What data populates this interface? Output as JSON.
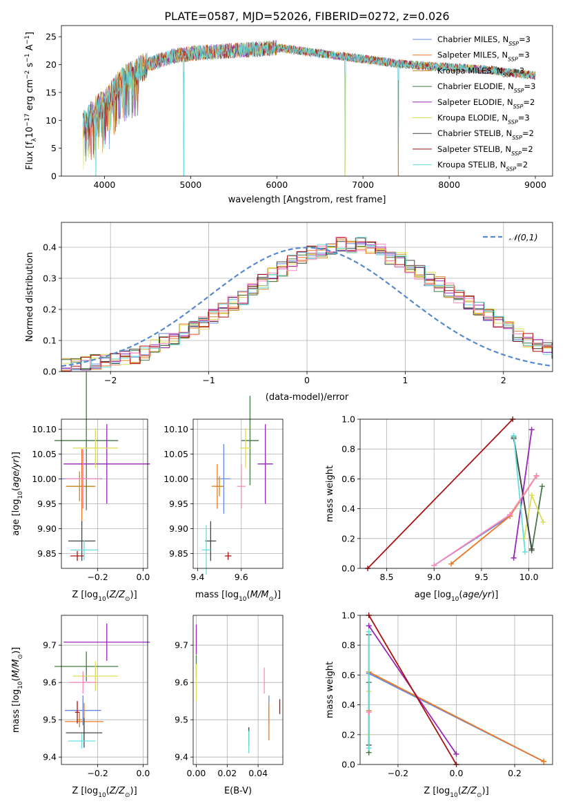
{
  "figure": {
    "title": "PLATE=0587, MJD=52026, FIBERID=0272, z=0.026"
  },
  "colors": [
    "#6688dd",
    "#ee7722",
    "#cc8822",
    "#447744",
    "#9922bb",
    "#dddd55",
    "#444444",
    "#aa1111",
    "#66dddd",
    "#ff88bb"
  ],
  "chart_data": [
    {
      "id": "spectrum",
      "type": "line",
      "xlabel": "wavelength [Angstrom, rest frame]",
      "ylabel": "Flux [f_λ 10^-17 erg cm^-2 s^-1 A^-1]",
      "xlim": [
        3500,
        9200
      ],
      "ylim": [
        0,
        27
      ],
      "xticks": [
        4000,
        5000,
        6000,
        7000,
        8000,
        9000
      ],
      "yticks": [
        0,
        5,
        10,
        15,
        20,
        25
      ],
      "grid": false,
      "legend_placement": "upper-right",
      "series": [
        {
          "name": "Chabrier MILES, N_SSP=3",
          "color": "#6688dd"
        },
        {
          "name": "Salpeter MILES, N_SSP=3",
          "color": "#ee7722"
        },
        {
          "name": "Kroupa MILES, N_SSP=3",
          "color": "#cc8822"
        },
        {
          "name": "Chabrier ELODIE, N_SSP=3",
          "color": "#447744"
        },
        {
          "name": "Salpeter ELODIE, N_SSP=2",
          "color": "#9922bb"
        },
        {
          "name": "Kroupa ELODIE, N_SSP=3",
          "color": "#dddd55"
        },
        {
          "name": "Chabrier STELIB, N_SSP=2",
          "color": "#444444"
        },
        {
          "name": "Salpeter STELIB, N_SSP=2",
          "color": "#aa1111"
        },
        {
          "name": "Kroupa STELIB, N_SSP=2",
          "color": "#66dddd"
        }
      ],
      "continuum": {
        "x": [
          3750,
          3900,
          4000,
          4200,
          4500,
          4800,
          5000,
          5500,
          6000,
          6500,
          7000,
          7500,
          8000,
          8500,
          9000
        ],
        "y": [
          9,
          12,
          13,
          17,
          20,
          21.5,
          22,
          22.5,
          23,
          22,
          21,
          20,
          19.5,
          19,
          18
        ]
      },
      "dips": [
        {
          "x": 3900,
          "y": 0
        },
        {
          "x": 4920,
          "y": 0
        },
        {
          "x": 6790,
          "y": 0
        },
        {
          "x": 7410,
          "y": 0
        }
      ]
    },
    {
      "id": "residual_hist",
      "type": "step",
      "xlabel": "(data-model)/error",
      "ylabel": "Normed distribution",
      "xlim": [
        -2.5,
        2.5
      ],
      "ylim": [
        0,
        0.48
      ],
      "xticks": [
        -2,
        -1,
        0,
        1,
        2
      ],
      "yticks": [
        0.0,
        0.1,
        0.2,
        0.3,
        0.4
      ],
      "grid": true,
      "legend_placement": "upper-right",
      "legend": [
        "𝒩(0,1)"
      ],
      "bin_width": 0.1,
      "bins_start": -2.5,
      "hist_reference": [
        0.018,
        0.02,
        0.025,
        0.03,
        0.035,
        0.04,
        0.045,
        0.05,
        0.06,
        0.08,
        0.1,
        0.11,
        0.13,
        0.14,
        0.16,
        0.18,
        0.2,
        0.22,
        0.24,
        0.27,
        0.29,
        0.31,
        0.33,
        0.35,
        0.37,
        0.38,
        0.39,
        0.4,
        0.41,
        0.4,
        0.41,
        0.4,
        0.39,
        0.37,
        0.36,
        0.34,
        0.32,
        0.3,
        0.28,
        0.26,
        0.24,
        0.22,
        0.2,
        0.18,
        0.16,
        0.14,
        0.12,
        0.1,
        0.085,
        0.07,
        0.06,
        0.05,
        0.045,
        0.04,
        0.035,
        0.03,
        0.028,
        0.025,
        0.022,
        0.02
      ]
    },
    {
      "id": "age_vs_Z",
      "type": "errorbar",
      "xlabel": "Z [log10(Z/Z_sun)]",
      "ylabel": "age  [log10(age/yr)]",
      "xlim": [
        -0.36,
        0.02
      ],
      "ylim": [
        9.82,
        10.12
      ],
      "xticks": [
        -0.2,
        0.0
      ],
      "yticks": [
        9.85,
        9.9,
        9.95,
        10.0,
        10.05,
        10.1
      ],
      "grid": true,
      "points": [
        {
          "x": -0.27,
          "y": 10.0,
          "xerr": 0.09,
          "yerr": 0.06,
          "color": "#6688dd"
        },
        {
          "x": -0.27,
          "y": 9.985,
          "xerr": 0.06,
          "yerr": 0.075,
          "color": "#ee7722"
        },
        {
          "x": -0.28,
          "y": 9.985,
          "xerr": 0.06,
          "yerr": 0.03,
          "color": "#cc8822"
        },
        {
          "x": -0.25,
          "y": 10.077,
          "xerr": 0.14,
          "yerr": 0.14,
          "color": "#447744"
        },
        {
          "x": -0.16,
          "y": 10.03,
          "xerr": 0.19,
          "yerr": 0.08,
          "color": "#9922bb"
        },
        {
          "x": -0.21,
          "y": 10.062,
          "xerr": 0.1,
          "yerr": 0.04,
          "color": "#dddd55"
        },
        {
          "x": -0.27,
          "y": 9.875,
          "xerr": 0.06,
          "yerr": 0.04,
          "color": "#444444"
        },
        {
          "x": -0.29,
          "y": 9.845,
          "xerr": 0.03,
          "yerr": 0.01,
          "color": "#aa1111"
        },
        {
          "x": -0.26,
          "y": 9.857,
          "xerr": 0.06,
          "yerr": 0.02,
          "color": "#66dddd"
        },
        {
          "x": -0.265,
          "y": 10.0,
          "xerr": 0.08,
          "yerr": 0.06,
          "color": "#ff88bb"
        }
      ]
    },
    {
      "id": "age_vs_mass",
      "type": "errorbar",
      "xlabel": "mass [log10(M/M_sun)]",
      "ylabel": "",
      "xlim": [
        9.38,
        9.79
      ],
      "ylim": [
        9.82,
        10.12
      ],
      "xticks": [
        9.4,
        9.6
      ],
      "yticks": [
        9.85,
        9.9,
        9.95,
        10.0,
        10.05,
        10.1
      ],
      "grid": true,
      "points": [
        {
          "x": 9.52,
          "y": 10.0,
          "xerr": 0.03,
          "yerr": 0.07,
          "color": "#6688dd"
        },
        {
          "x": 9.49,
          "y": 9.985,
          "xerr": 0.025,
          "yerr": 0.045,
          "color": "#ee7722"
        },
        {
          "x": 9.5,
          "y": 9.985,
          "xerr": 0.02,
          "yerr": 0.02,
          "color": "#cc8822"
        },
        {
          "x": 9.64,
          "y": 10.077,
          "xerr": 0.04,
          "yerr": 0.09,
          "color": "#447744"
        },
        {
          "x": 9.71,
          "y": 10.03,
          "xerr": 0.035,
          "yerr": 0.08,
          "color": "#9922bb"
        },
        {
          "x": 9.62,
          "y": 10.062,
          "xerr": 0.025,
          "yerr": 0.04,
          "color": "#dddd55"
        },
        {
          "x": 9.46,
          "y": 9.875,
          "xerr": 0.025,
          "yerr": 0.04,
          "color": "#444444"
        },
        {
          "x": 9.54,
          "y": 9.845,
          "xerr": 0.015,
          "yerr": 0.008,
          "color": "#aa1111"
        },
        {
          "x": 9.44,
          "y": 9.857,
          "xerr": 0.02,
          "yerr": 0.05,
          "color": "#66dddd"
        },
        {
          "x": 9.6,
          "y": 9.985,
          "xerr": 0.02,
          "yerr": 0.045,
          "color": "#ff88bb"
        }
      ]
    },
    {
      "id": "weight_vs_age",
      "type": "line",
      "xlabel": "age  [log10(age/yr)]",
      "ylabel": "mass weight",
      "xlim": [
        8.22,
        10.25
      ],
      "ylim": [
        0,
        1.0
      ],
      "xticks": [
        8.5,
        9.0,
        9.5,
        10.0
      ],
      "yticks": [
        0.0,
        0.2,
        0.4,
        0.6,
        0.8,
        1.0
      ],
      "grid": true,
      "series": [
        {
          "color": "#6688dd",
          "x": [
            9.0,
            9.8,
            10.08
          ],
          "y": [
            0.02,
            0.35,
            0.62
          ]
        },
        {
          "color": "#ee7722",
          "x": [
            9.18,
            9.8,
            10.08
          ],
          "y": [
            0.03,
            0.35,
            0.62
          ]
        },
        {
          "color": "#cc8822",
          "x": [
            9.8,
            10.08
          ],
          "y": [
            0.36,
            0.62
          ]
        },
        {
          "color": "#447744",
          "x": [
            9.84,
            10.03,
            10.14
          ],
          "y": [
            0.88,
            0.12,
            0.55
          ]
        },
        {
          "color": "#9922bb",
          "x": [
            9.84,
            10.03
          ],
          "y": [
            0.07,
            0.93
          ]
        },
        {
          "color": "#dddd55",
          "x": [
            9.95,
            10.03,
            10.15
          ],
          "y": [
            0.2,
            0.49,
            0.31
          ]
        },
        {
          "color": "#444444",
          "x": [
            9.84,
            10.03
          ],
          "y": [
            0.87,
            0.13
          ]
        },
        {
          "color": "#aa1111",
          "x": [
            8.3,
            9.83
          ],
          "y": [
            0.0,
            1.0
          ]
        },
        {
          "color": "#66dddd",
          "x": [
            9.84,
            9.96
          ],
          "y": [
            0.89,
            0.11
          ]
        },
        {
          "color": "#ff88bb",
          "x": [
            9.0,
            9.8,
            10.08
          ],
          "y": [
            0.02,
            0.36,
            0.62
          ]
        }
      ]
    },
    {
      "id": "mass_vs_Z",
      "type": "errorbar",
      "xlabel": "Z [log10(Z/Z_sun)]",
      "ylabel": "mass [log10(M/M_sun)]",
      "xlim": [
        -0.36,
        0.02
      ],
      "ylim": [
        9.38,
        9.78
      ],
      "xticks": [
        -0.2,
        0.0
      ],
      "yticks": [
        9.4,
        9.5,
        9.6,
        9.7
      ],
      "grid": true,
      "points": [
        {
          "x": -0.265,
          "y": 9.525,
          "xerr": 0.08,
          "yerr": 0.04,
          "color": "#6688dd"
        },
        {
          "x": -0.26,
          "y": 9.495,
          "xerr": 0.085,
          "yerr": 0.05,
          "color": "#ee7722"
        },
        {
          "x": -0.28,
          "y": 9.5,
          "xerr": 0.01,
          "yerr": 0.02,
          "color": "#cc8822"
        },
        {
          "x": -0.25,
          "y": 9.643,
          "xerr": 0.14,
          "yerr": 0.04,
          "color": "#447744"
        },
        {
          "x": -0.16,
          "y": 9.708,
          "xerr": 0.19,
          "yerr": 0.05,
          "color": "#9922bb"
        },
        {
          "x": -0.21,
          "y": 9.617,
          "xerr": 0.1,
          "yerr": 0.04,
          "color": "#dddd55"
        },
        {
          "x": -0.26,
          "y": 9.465,
          "xerr": 0.08,
          "yerr": 0.04,
          "color": "#444444"
        },
        {
          "x": -0.29,
          "y": 9.52,
          "xerr": 0.01,
          "yerr": 0.03,
          "color": "#aa1111"
        },
        {
          "x": -0.27,
          "y": 9.443,
          "xerr": 0.06,
          "yerr": 0.02,
          "color": "#66dddd"
        },
        {
          "x": -0.265,
          "y": 9.6,
          "xerr": 0.06,
          "yerr": 0.03,
          "color": "#ff88bb"
        }
      ]
    },
    {
      "id": "mass_vs_ebv",
      "type": "errorbar",
      "xlabel": "E(B-V)",
      "ylabel": "",
      "xlim": [
        -0.002,
        0.056
      ],
      "ylim": [
        9.38,
        9.78
      ],
      "xticks": [
        0.0,
        0.02,
        0.04
      ],
      "yticks": [
        9.4,
        9.5,
        9.6,
        9.7
      ],
      "grid": true,
      "points": [
        {
          "x": 0.047,
          "y": 9.525,
          "xerr": 0,
          "yerr": 0.04,
          "color": "#6688dd"
        },
        {
          "x": 0.047,
          "y": 9.495,
          "xerr": 0,
          "yerr": 0.05,
          "color": "#ee7722"
        },
        {
          "x": 0.054,
          "y": 9.535,
          "xerr": 0,
          "yerr": 0.02,
          "color": "#aa1111"
        },
        {
          "x": 0.0,
          "y": 9.643,
          "xerr": 0,
          "yerr": 0.03,
          "color": "#447744"
        },
        {
          "x": 0.0,
          "y": 9.715,
          "xerr": 0,
          "yerr": 0.04,
          "color": "#9922bb"
        },
        {
          "x": 0.0,
          "y": 9.6,
          "xerr": 0,
          "yerr": 0.05,
          "color": "#dddd55"
        },
        {
          "x": 0.034,
          "y": 9.455,
          "xerr": 0,
          "yerr": 0.025,
          "color": "#444444"
        },
        {
          "x": 0.034,
          "y": 9.44,
          "xerr": 0,
          "yerr": 0.03,
          "color": "#66dddd"
        },
        {
          "x": 0.044,
          "y": 9.605,
          "xerr": 0,
          "yerr": 0.035,
          "color": "#ff88bb"
        }
      ]
    },
    {
      "id": "weight_vs_Z",
      "type": "line",
      "xlabel": "Z [log10(Z/Z_sun)]",
      "ylabel": "mass weight",
      "xlim": [
        -0.33,
        0.33
      ],
      "ylim": [
        0,
        1.0
      ],
      "xticks": [
        -0.2,
        0.0,
        0.2
      ],
      "yticks": [
        0.0,
        0.2,
        0.4,
        0.6,
        0.8,
        1.0
      ],
      "grid": true,
      "series": [
        {
          "color": "#6688dd",
          "x": [
            -0.3,
            0.3
          ],
          "y": [
            0.61,
            0.02
          ]
        },
        {
          "color": "#ee7722",
          "x": [
            -0.3,
            0.3
          ],
          "y": [
            0.62,
            0.02
          ]
        },
        {
          "color": "#cc8822",
          "x": [
            -0.3
          ],
          "y": [
            0.36
          ]
        },
        {
          "color": "#447744",
          "x": [
            -0.3,
            -0.3
          ],
          "y": [
            0.55,
            0.08
          ]
        },
        {
          "color": "#9922bb",
          "x": [
            -0.3,
            0.0
          ],
          "y": [
            0.93,
            0.07
          ]
        },
        {
          "color": "#dddd55",
          "x": [
            -0.3,
            -0.3
          ],
          "y": [
            0.49,
            0.2
          ]
        },
        {
          "color": "#444444",
          "x": [
            -0.3,
            -0.3
          ],
          "y": [
            0.87,
            0.13
          ]
        },
        {
          "color": "#aa1111",
          "x": [
            -0.3,
            0.0
          ],
          "y": [
            1.0,
            0.0
          ]
        },
        {
          "color": "#66dddd",
          "x": [
            -0.3,
            -0.3
          ],
          "y": [
            0.89,
            0.11
          ]
        },
        {
          "color": "#ff88bb",
          "x": [
            -0.3
          ],
          "y": [
            0.35
          ]
        }
      ]
    }
  ]
}
